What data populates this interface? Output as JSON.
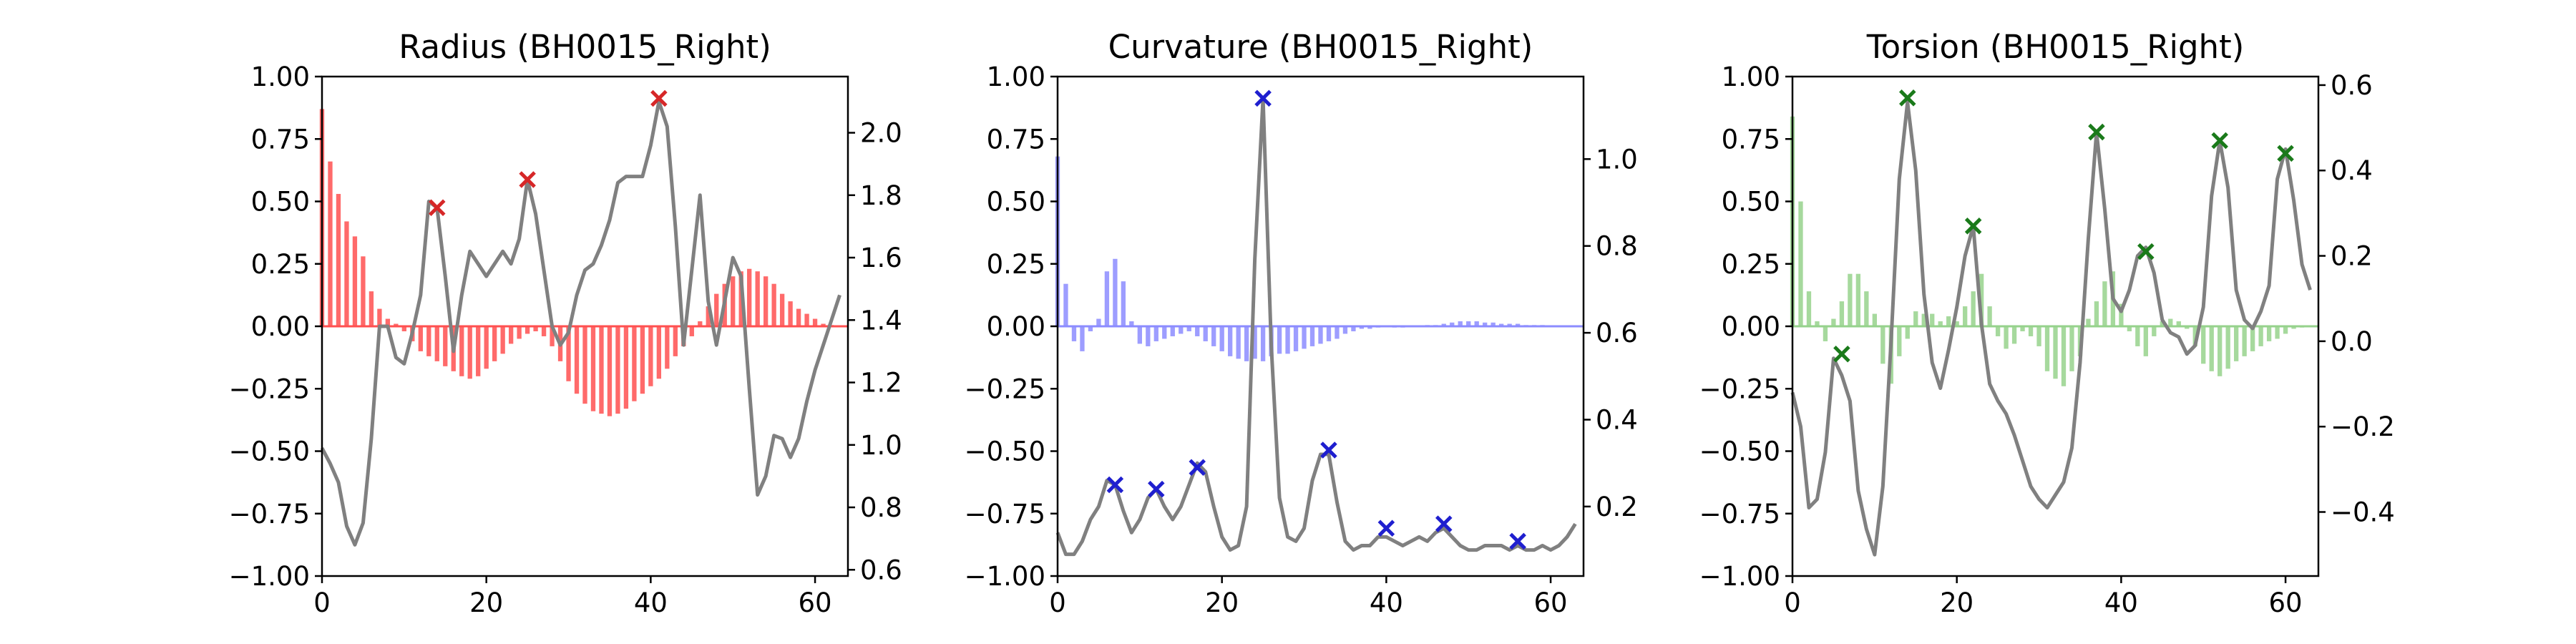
{
  "chart_data": [
    {
      "type": "bar",
      "title": "Radius (BH0015_Right)",
      "xlim": [
        0,
        64
      ],
      "ylim": [
        -1.0,
        1.0
      ],
      "y2lim": [
        0.58,
        2.18
      ],
      "xticks": [
        "0",
        "20",
        "40",
        "60"
      ],
      "yticks": [
        "-1.00",
        "-0.75",
        "-0.50",
        "-0.25",
        "0.00",
        "0.25",
        "0.50",
        "0.75",
        "1.00"
      ],
      "y2ticks": [
        "0.6",
        "0.8",
        "1.0",
        "1.2",
        "1.4",
        "1.6",
        "1.8",
        "2.0"
      ],
      "bar_color": "#ff5050",
      "marker_color": "#d62728",
      "line_color": "#808080",
      "bars": [
        0.87,
        0.66,
        0.53,
        0.42,
        0.36,
        0.28,
        0.14,
        0.07,
        0.03,
        0.01,
        -0.02,
        -0.06,
        -0.1,
        -0.12,
        -0.14,
        -0.16,
        -0.18,
        -0.2,
        -0.21,
        -0.2,
        -0.17,
        -0.14,
        -0.11,
        -0.07,
        -0.05,
        -0.03,
        -0.02,
        -0.04,
        -0.08,
        -0.14,
        -0.22,
        -0.27,
        -0.31,
        -0.34,
        -0.35,
        -0.36,
        -0.35,
        -0.33,
        -0.3,
        -0.27,
        -0.24,
        -0.21,
        -0.17,
        -0.12,
        -0.08,
        -0.04,
        0.02,
        0.08,
        0.13,
        0.17,
        0.2,
        0.22,
        0.23,
        0.22,
        0.2,
        0.17,
        0.13,
        0.1,
        0.07,
        0.05,
        0.03,
        0.01,
        0.005,
        0.002
      ],
      "line": [
        0.99,
        0.94,
        0.88,
        0.74,
        0.68,
        0.75,
        1.02,
        1.38,
        1.38,
        1.28,
        1.26,
        1.36,
        1.48,
        1.78,
        1.76,
        1.54,
        1.3,
        1.48,
        1.62,
        1.58,
        1.54,
        1.58,
        1.62,
        1.58,
        1.66,
        1.85,
        1.74,
        1.56,
        1.38,
        1.32,
        1.36,
        1.48,
        1.56,
        1.58,
        1.64,
        1.72,
        1.84,
        1.86,
        1.86,
        1.86,
        1.96,
        2.1,
        2.02,
        1.7,
        1.32,
        1.56,
        1.8,
        1.46,
        1.32,
        1.46,
        1.6,
        1.54,
        1.18,
        0.84,
        0.9,
        1.03,
        1.02,
        0.96,
        1.02,
        1.14,
        1.24,
        1.32,
        1.4,
        1.48
      ],
      "markers": [
        {
          "x": 14,
          "y": 1.76
        },
        {
          "x": 25,
          "y": 1.85
        },
        {
          "x": 41,
          "y": 2.11
        }
      ]
    },
    {
      "type": "bar",
      "title": "Curvature (BH0015_Right)",
      "xlim": [
        0,
        64
      ],
      "ylim": [
        -1.0,
        1.0
      ],
      "y2lim": [
        0.04,
        1.19
      ],
      "xticks": [
        "0",
        "20",
        "40",
        "60"
      ],
      "yticks": [
        "-1.00",
        "-0.75",
        "-0.50",
        "-0.25",
        "0.00",
        "0.25",
        "0.50",
        "0.75",
        "1.00"
      ],
      "y2ticks": [
        "0.2",
        "0.4",
        "0.6",
        "0.8",
        "1.0"
      ],
      "bar_color": "#8c8cff",
      "marker_color": "#1f1fcf",
      "line_color": "#808080",
      "bars": [
        0.68,
        0.17,
        -0.06,
        -0.1,
        -0.02,
        0.03,
        0.22,
        0.27,
        0.18,
        0.02,
        -0.07,
        -0.08,
        -0.06,
        -0.05,
        -0.04,
        -0.03,
        -0.02,
        -0.04,
        -0.06,
        -0.08,
        -0.1,
        -0.12,
        -0.13,
        -0.14,
        -0.13,
        -0.14,
        -0.12,
        -0.11,
        -0.11,
        -0.1,
        -0.09,
        -0.08,
        -0.07,
        -0.06,
        -0.05,
        -0.03,
        -0.02,
        -0.01,
        -0.01,
        -0.005,
        0.0,
        -0.005,
        -0.005,
        0.0,
        0.0,
        0.005,
        0.005,
        0.01,
        0.015,
        0.02,
        0.02,
        0.02,
        0.015,
        0.015,
        0.01,
        0.01,
        0.01,
        0.005,
        0.005,
        0.005,
        0.0,
        0.0,
        0.0,
        0.0
      ],
      "line": [
        0.14,
        0.09,
        0.09,
        0.12,
        0.17,
        0.2,
        0.26,
        0.25,
        0.19,
        0.14,
        0.17,
        0.22,
        0.24,
        0.2,
        0.17,
        0.2,
        0.25,
        0.3,
        0.28,
        0.2,
        0.13,
        0.1,
        0.11,
        0.2,
        0.77,
        1.14,
        0.57,
        0.22,
        0.13,
        0.12,
        0.15,
        0.26,
        0.32,
        0.32,
        0.21,
        0.12,
        0.1,
        0.11,
        0.11,
        0.13,
        0.13,
        0.12,
        0.11,
        0.12,
        0.13,
        0.12,
        0.14,
        0.15,
        0.13,
        0.11,
        0.1,
        0.1,
        0.11,
        0.11,
        0.11,
        0.1,
        0.11,
        0.1,
        0.1,
        0.11,
        0.1,
        0.11,
        0.13,
        0.16
      ],
      "markers": [
        {
          "x": 7,
          "y": 0.25
        },
        {
          "x": 12,
          "y": 0.24
        },
        {
          "x": 17,
          "y": 0.29
        },
        {
          "x": 25,
          "y": 1.14
        },
        {
          "x": 33,
          "y": 0.33
        },
        {
          "x": 40,
          "y": 0.15
        },
        {
          "x": 47,
          "y": 0.16
        },
        {
          "x": 56,
          "y": 0.12
        }
      ]
    },
    {
      "type": "bar",
      "title": "Torsion (BH0015_Right)",
      "xlim": [
        0,
        64
      ],
      "ylim": [
        -1.0,
        1.0
      ],
      "y2lim": [
        -0.55,
        0.62
      ],
      "xticks": [
        "0",
        "20",
        "40",
        "60"
      ],
      "yticks": [
        "-1.00",
        "-0.75",
        "-0.50",
        "-0.25",
        "0.00",
        "0.25",
        "0.50",
        "0.75",
        "1.00"
      ],
      "y2ticks": [
        "-0.4",
        "-0.2",
        "0.0",
        "0.2",
        "0.4",
        "0.6"
      ],
      "bar_color": "#96d28c",
      "marker_color": "#1a7a1a",
      "line_color": "#808080",
      "bars": [
        0.84,
        0.5,
        0.14,
        0.02,
        -0.06,
        0.03,
        0.1,
        0.21,
        0.21,
        0.14,
        0.05,
        -0.15,
        -0.23,
        -0.12,
        -0.05,
        0.06,
        0.05,
        0.05,
        0.02,
        0.04,
        0.02,
        0.08,
        0.14,
        0.21,
        0.08,
        -0.04,
        -0.09,
        -0.07,
        -0.02,
        -0.04,
        -0.08,
        -0.18,
        -0.21,
        -0.24,
        -0.18,
        -0.12,
        0.03,
        0.1,
        0.18,
        0.22,
        0.09,
        -0.02,
        -0.08,
        -0.12,
        -0.04,
        0.02,
        0.03,
        0.02,
        -0.01,
        -0.08,
        -0.15,
        -0.18,
        -0.2,
        -0.17,
        -0.14,
        -0.12,
        -0.1,
        -0.08,
        -0.06,
        -0.05,
        -0.03,
        -0.01,
        -0.005,
        0.0
      ],
      "line": [
        -0.12,
        -0.2,
        -0.39,
        -0.37,
        -0.26,
        -0.04,
        -0.08,
        -0.14,
        -0.35,
        -0.44,
        -0.5,
        -0.34,
        0.0,
        0.38,
        0.56,
        0.4,
        0.11,
        -0.05,
        -0.11,
        -0.02,
        0.08,
        0.2,
        0.27,
        0.04,
        -0.1,
        -0.14,
        -0.17,
        -0.22,
        -0.28,
        -0.34,
        -0.37,
        -0.39,
        -0.36,
        -0.33,
        -0.25,
        -0.05,
        0.24,
        0.49,
        0.31,
        0.1,
        0.07,
        0.12,
        0.2,
        0.22,
        0.16,
        0.05,
        0.02,
        0.01,
        -0.03,
        -0.01,
        0.08,
        0.34,
        0.47,
        0.36,
        0.12,
        0.05,
        0.03,
        0.07,
        0.13,
        0.38,
        0.45,
        0.33,
        0.18,
        0.12
      ],
      "markers": [
        {
          "x": 6,
          "y": -0.03
        },
        {
          "x": 14,
          "y": 0.57
        },
        {
          "x": 22,
          "y": 0.27
        },
        {
          "x": 37,
          "y": 0.49
        },
        {
          "x": 43,
          "y": 0.21
        },
        {
          "x": 52,
          "y": 0.47
        },
        {
          "x": 60,
          "y": 0.44
        }
      ]
    }
  ]
}
